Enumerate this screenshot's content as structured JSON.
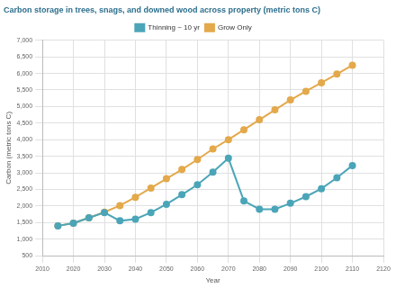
{
  "chart_data": {
    "type": "line",
    "title": "Carbon storage in trees, snags, and downed wood across property (metric tons C)",
    "x_label": "Year",
    "y_label": "Carbon (metric tons C)",
    "x": [
      2015,
      2020,
      2025,
      2030,
      2035,
      2040,
      2045,
      2050,
      2055,
      2060,
      2065,
      2070,
      2075,
      2080,
      2085,
      2090,
      2095,
      2100,
      2105,
      2110
    ],
    "series": [
      {
        "name": "Thinning ~ 10 yr",
        "color": "#4ba5b8",
        "marker": "circle",
        "line_style": "solid",
        "values": [
          1400,
          1480,
          1640,
          1800,
          1550,
          1600,
          1800,
          2050,
          2340,
          2640,
          3020,
          3440,
          2150,
          1900,
          1900,
          2080,
          2280,
          2520,
          2850,
          3220
        ]
      },
      {
        "name": "Grow Only",
        "color": "#e3a94b",
        "marker": "circle",
        "line_style": "solid",
        "values": [
          1400,
          1480,
          1640,
          1810,
          2010,
          2260,
          2540,
          2820,
          3100,
          3400,
          3720,
          4000,
          4300,
          4600,
          4900,
          5200,
          5460,
          5720,
          5980,
          6250
        ]
      }
    ],
    "xlim": [
      2010,
      2120
    ],
    "xticks": [
      2010,
      2020,
      2030,
      2040,
      2050,
      2060,
      2070,
      2080,
      2090,
      2100,
      2110,
      2120
    ],
    "ylim": [
      500,
      7000
    ],
    "yticks": [
      500,
      {
        "value": 1000,
        "label": "1,000"
      },
      {
        "value": 1500,
        "label": "1,500"
      },
      {
        "value": 2000,
        "label": "2,000"
      },
      {
        "value": 2500,
        "label": "2,500"
      },
      {
        "value": 3000,
        "label": "3,000"
      },
      {
        "value": 3500,
        "label": "3,500"
      },
      {
        "value": 4000,
        "label": "4,000"
      },
      {
        "value": 4500,
        "label": "4,500"
      },
      {
        "value": 5000,
        "label": "5,000"
      },
      {
        "value": 5500,
        "label": "5,500"
      },
      {
        "value": 6000,
        "label": "6,000"
      },
      {
        "value": 6500,
        "label": "6,500"
      },
      {
        "value": 7000,
        "label": "7,000"
      }
    ],
    "grid": true,
    "legend": "top"
  }
}
